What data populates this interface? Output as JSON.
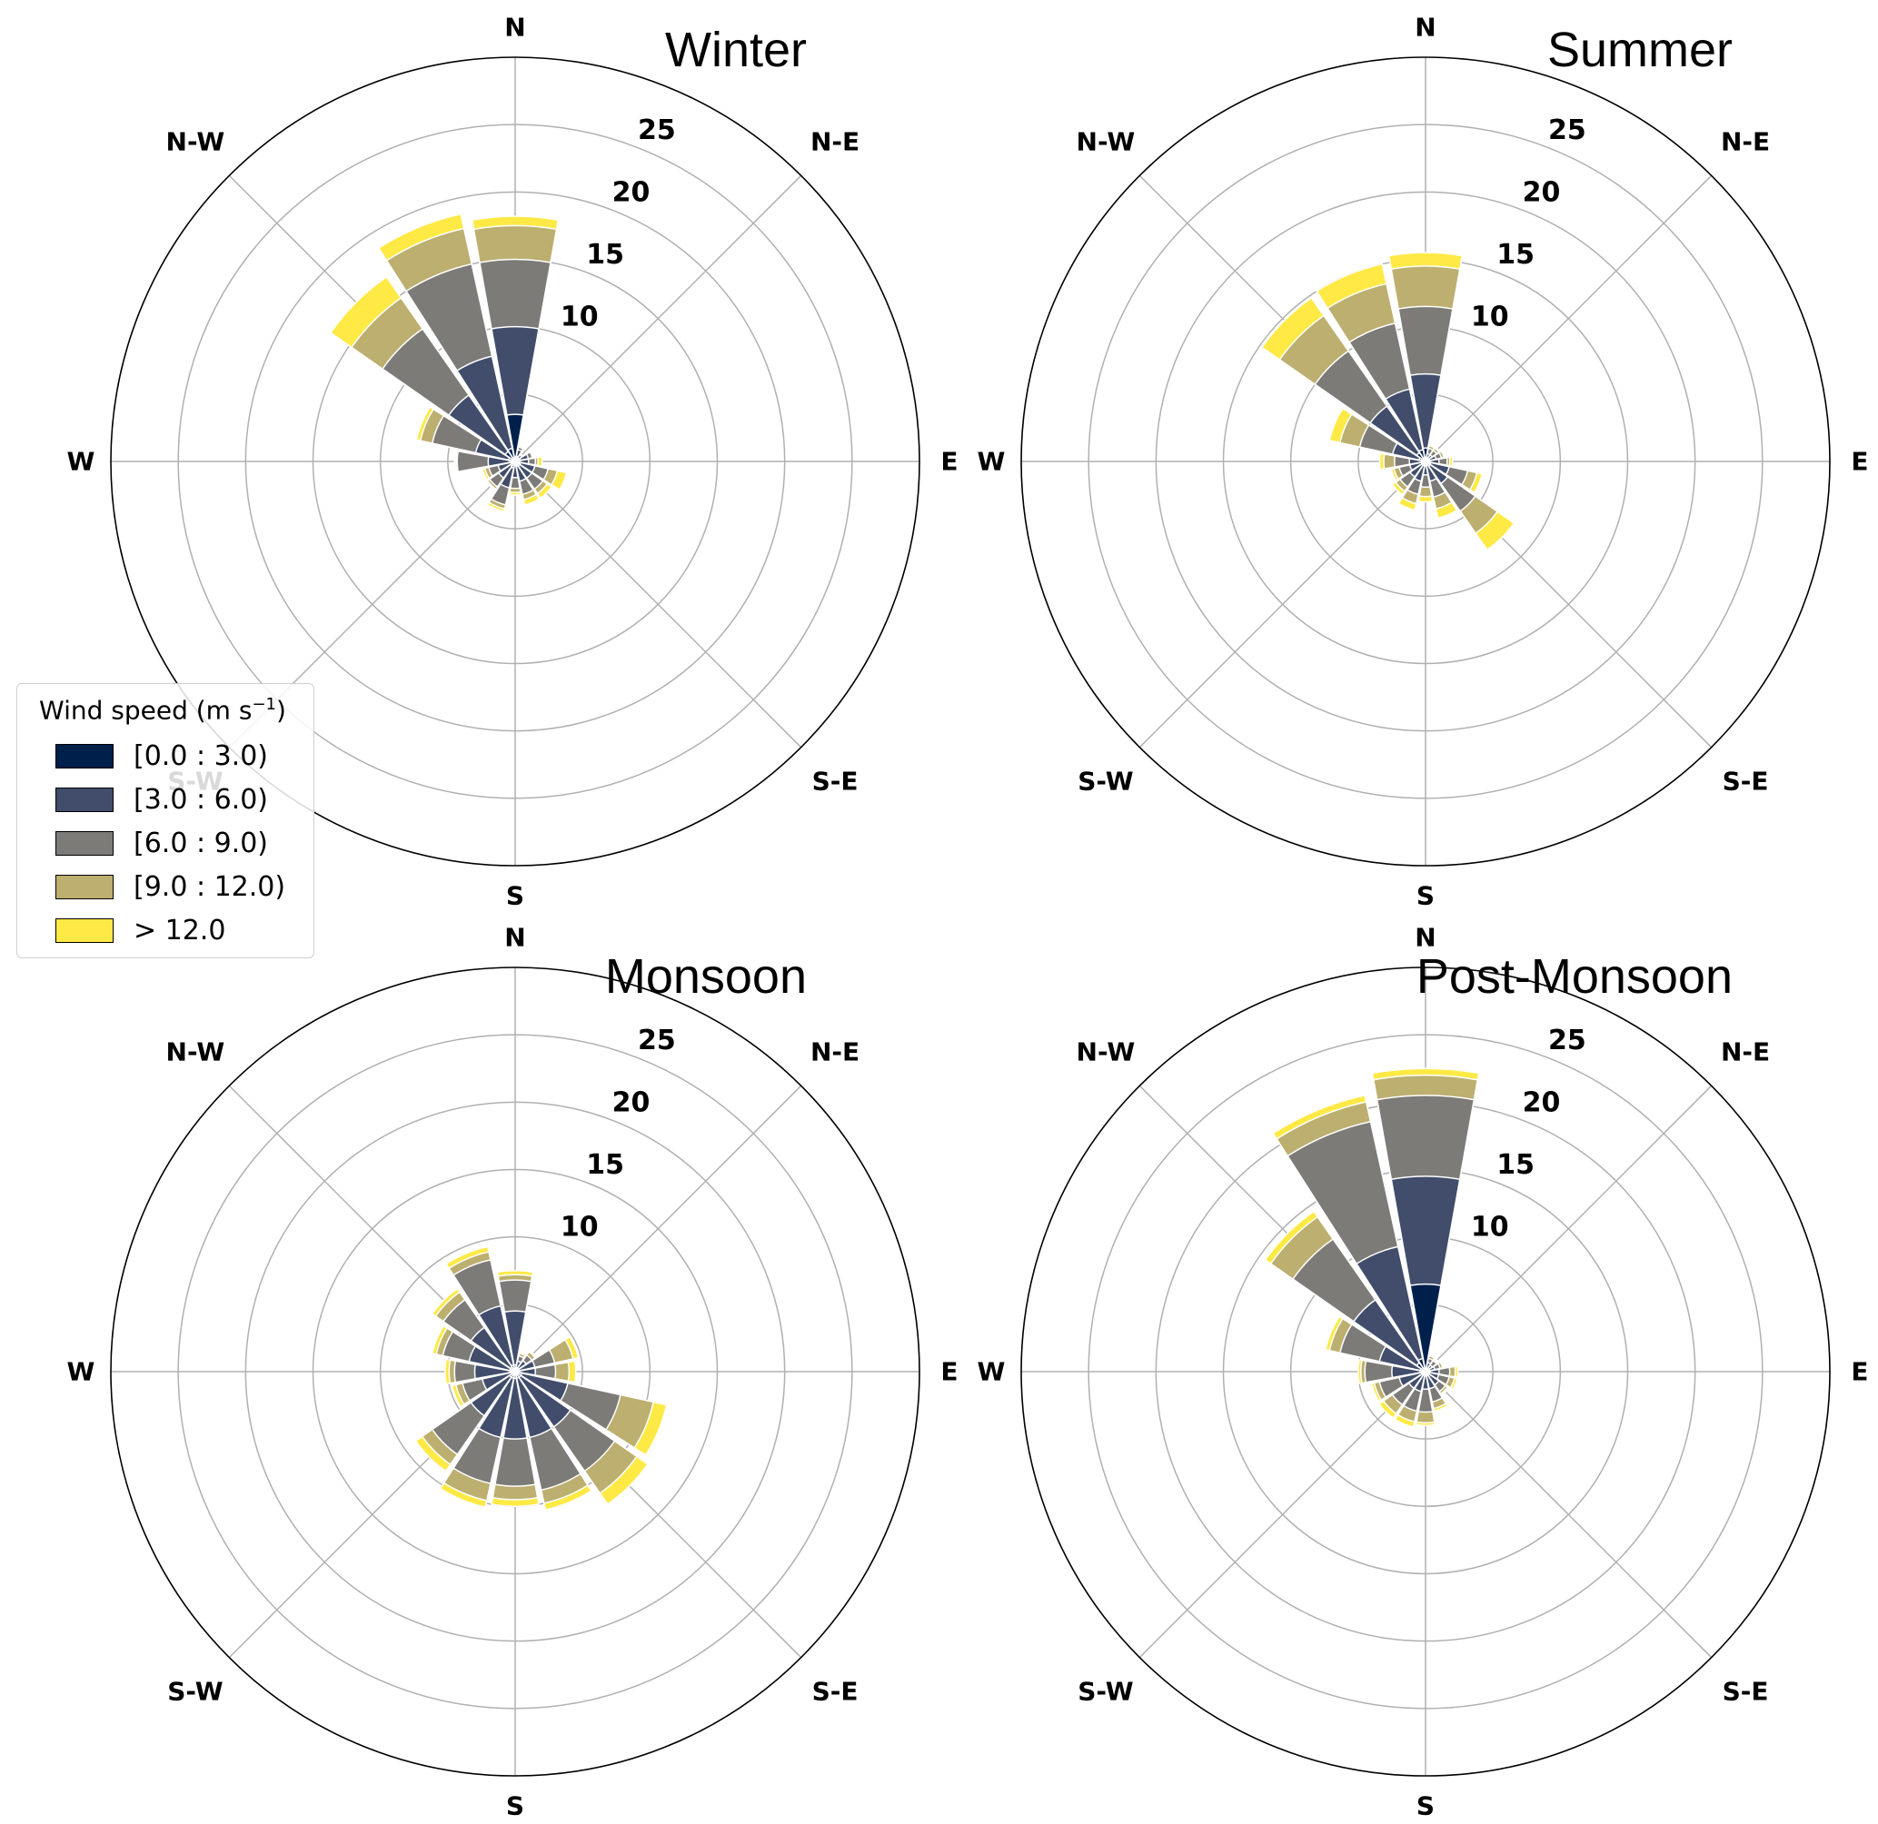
{
  "chart_data": {
    "type": "windrose",
    "legend": {
      "title": "Wind speed (m s",
      "title_sup": "−1",
      "title_end": ")",
      "bins": [
        {
          "label": "[0.0 : 3.0)",
          "color": "#00204c"
        },
        {
          "label": "[3.0 : 6.0)",
          "color": "#414d6b"
        },
        {
          "label": "[6.0 : 9.0)",
          "color": "#7c7b78"
        },
        {
          "label": "[9.0 : 12.0)",
          "color": "#bcaf6f"
        },
        {
          "label": "> 12.0",
          "color": "#ffe945"
        }
      ]
    },
    "direction_labels": [
      "N",
      "N-E",
      "E",
      "S-E",
      "S",
      "S-W",
      "W",
      "N-W"
    ],
    "radial_ticks": [
      "10",
      "15",
      "20",
      "25"
    ],
    "radial_max": 30,
    "sector_directions_deg": [
      0,
      22.5,
      45,
      67.5,
      90,
      112.5,
      135,
      157.5,
      180,
      202.5,
      225,
      247.5,
      270,
      292.5,
      315,
      337.5
    ],
    "panels": [
      {
        "title": "Winter",
        "cumulative": [
          [
            3.5,
            10,
            15,
            17.5,
            18.2
          ],
          [
            0.4,
            0.9,
            1.1,
            1.2,
            1.2
          ],
          [
            0.3,
            0.6,
            0.7,
            0.7,
            0.7
          ],
          [
            0.4,
            1.0,
            1.3,
            1.4,
            1.5
          ],
          [
            0.3,
            1.0,
            1.5,
            1.7,
            2.0
          ],
          [
            0.4,
            1.5,
            2.5,
            3.2,
            3.9
          ],
          [
            0.4,
            1.5,
            2.5,
            2.9,
            3.3
          ],
          [
            0.4,
            1.5,
            2.5,
            2.9,
            3.3
          ],
          [
            0.3,
            1.2,
            2.0,
            2.3,
            2.5
          ],
          [
            0.5,
            2.0,
            3.3,
            3.6,
            3.8
          ],
          [
            0.4,
            1.5,
            2.3,
            2.5,
            2.6
          ],
          [
            0.3,
            1.3,
            2.0,
            2.3,
            2.5
          ],
          [
            0.4,
            2.0,
            4.3,
            4.4,
            4.5
          ],
          [
            0.5,
            3.0,
            6.3,
            7.2,
            7.5
          ],
          [
            0.9,
            6.0,
            12.0,
            14.8,
            16.7
          ],
          [
            1.0,
            8.0,
            15.0,
            17.7,
            18.8
          ]
        ]
      },
      {
        "title": "Summer",
        "cumulative": [
          [
            1.0,
            6.5,
            11.5,
            14.5,
            15.5
          ],
          [
            0.2,
            0.6,
            1.0,
            1.2,
            1.3
          ],
          [
            0.2,
            0.6,
            1.0,
            1.2,
            1.3
          ],
          [
            0.3,
            0.8,
            1.2,
            1.4,
            1.5
          ],
          [
            0.3,
            1.0,
            1.6,
            1.8,
            2.0
          ],
          [
            0.4,
            1.8,
            3.2,
            3.9,
            4.3
          ],
          [
            0.4,
            2.0,
            4.5,
            6.5,
            8.0
          ],
          [
            0.3,
            1.5,
            2.7,
            3.6,
            4.3
          ],
          [
            0.3,
            1.0,
            1.9,
            2.6,
            3.0
          ],
          [
            0.3,
            1.5,
            2.5,
            3.2,
            3.7
          ],
          [
            0.3,
            1.4,
            2.3,
            2.7,
            3.0
          ],
          [
            0.3,
            1.2,
            2.0,
            2.4,
            2.6
          ],
          [
            0.3,
            1.2,
            2.3,
            3.1,
            3.4
          ],
          [
            0.5,
            2.5,
            5.0,
            6.5,
            7.3
          ],
          [
            0.8,
            5.0,
            10.0,
            13.2,
            14.8
          ],
          [
            0.9,
            5.5,
            10.5,
            13.5,
            15.0
          ]
        ]
      },
      {
        "title": "Monsoon",
        "cumulative": [
          [
            0.5,
            4.5,
            6.8,
            7.2,
            7.5
          ],
          [
            0.3,
            0.8,
            1.2,
            1.4,
            1.5
          ],
          [
            0.3,
            1.0,
            1.5,
            1.8,
            1.9
          ],
          [
            0.3,
            1.5,
            3.0,
            4.4,
            4.8
          ],
          [
            0.3,
            1.5,
            3.0,
            4.0,
            4.5
          ],
          [
            0.5,
            4.0,
            8.0,
            10.5,
            11.5
          ],
          [
            0.5,
            5.0,
            9.0,
            11.0,
            12.0
          ],
          [
            0.5,
            5.0,
            9.0,
            10.0,
            10.5
          ],
          [
            0.5,
            5.0,
            8.5,
            9.5,
            10.0
          ],
          [
            0.5,
            5.0,
            8.5,
            9.8,
            10.3
          ],
          [
            0.5,
            4.0,
            7.5,
            8.4,
            9.0
          ],
          [
            0.3,
            2.5,
            4.0,
            4.5,
            4.8
          ],
          [
            0.4,
            3.0,
            4.5,
            4.9,
            5.2
          ],
          [
            0.4,
            3.5,
            5.5,
            6.0,
            6.3
          ],
          [
            0.4,
            4.0,
            6.5,
            7.2,
            7.5
          ],
          [
            0.5,
            5.0,
            8.5,
            9.1,
            9.5
          ]
        ]
      },
      {
        "title": "Post-Monsoon",
        "cumulative": [
          [
            6.5,
            14.5,
            20.5,
            22.0,
            22.5
          ],
          [
            0.2,
            0.7,
            1.0,
            1.2,
            1.3
          ],
          [
            0.2,
            0.6,
            1.0,
            1.1,
            1.2
          ],
          [
            0.2,
            0.7,
            1.1,
            1.3,
            1.4
          ],
          [
            0.3,
            1.0,
            1.8,
            2.2,
            2.4
          ],
          [
            0.3,
            1.0,
            1.8,
            2.2,
            2.4
          ],
          [
            0.3,
            1.2,
            1.8,
            2.0,
            2.1
          ],
          [
            0.3,
            1.3,
            2.3,
            2.8,
            3.0
          ],
          [
            0.3,
            1.3,
            3.0,
            3.8,
            4.0
          ],
          [
            0.3,
            1.5,
            3.0,
            3.8,
            4.2
          ],
          [
            0.3,
            1.5,
            3.0,
            3.8,
            4.2
          ],
          [
            0.3,
            2.0,
            3.5,
            3.9,
            4.1
          ],
          [
            0.4,
            2.5,
            4.5,
            4.8,
            5.0
          ],
          [
            0.4,
            3.5,
            6.5,
            7.3,
            7.6
          ],
          [
            0.8,
            6.5,
            12.0,
            14.0,
            14.5
          ],
          [
            1.0,
            9.5,
            19.0,
            20.5,
            21.0
          ]
        ]
      }
    ]
  }
}
